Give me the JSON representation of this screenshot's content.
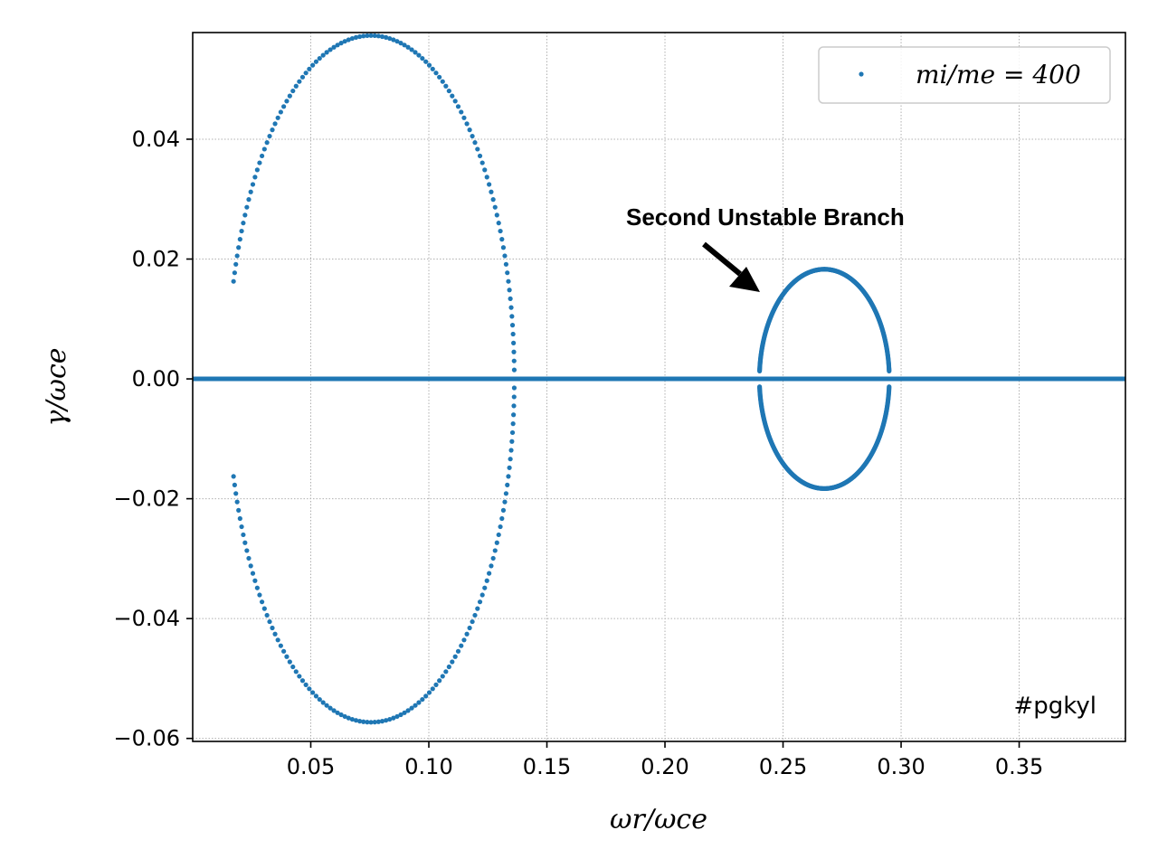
{
  "chart_data": {
    "type": "scatter",
    "title": "",
    "xlabel": "ωr/ωce",
    "ylabel": "γ/ωce",
    "xlim": [
      0.0,
      0.395
    ],
    "ylim": [
      -0.0605,
      0.0578
    ],
    "x_ticks": [
      0.05,
      0.1,
      0.15,
      0.2,
      0.25,
      0.3,
      0.35
    ],
    "x_tick_labels": [
      "0.05",
      "0.10",
      "0.15",
      "0.20",
      "0.25",
      "0.30",
      "0.35"
    ],
    "y_ticks": [
      -0.06,
      -0.04,
      -0.02,
      0.0,
      0.02,
      0.04
    ],
    "y_tick_labels": [
      "−0.06",
      "−0.04",
      "−0.02",
      "0.00",
      "0.02",
      "0.04"
    ],
    "grid": true,
    "legend_position": "top-right",
    "marker_color": "#1f77b4",
    "series": [
      {
        "name": "mi/me = 400",
        "branches": [
          {
            "shape": "closed curve",
            "center_x": 0.0755,
            "center_y": 0.0,
            "half_width": 0.0607,
            "half_height": 0.0573,
            "visible_x_range": [
              0.017,
              0.1365
            ],
            "points": 240
          },
          {
            "shape": "closed curve",
            "center_x": 0.2675,
            "center_y": 0.0,
            "half_width": 0.0275,
            "half_height": 0.0183,
            "visible_x_range": [
              0.24,
              0.295
            ],
            "points": 700
          },
          {
            "shape": "horizontal line",
            "y": 0.0,
            "x_range": [
              0.0,
              0.395
            ]
          }
        ]
      }
    ],
    "annotations": [
      {
        "text": "Second Unstable Branch",
        "arrow_to_x": 0.2435,
        "arrow_to_y": 0.015
      }
    ],
    "watermark": "#pgkyl"
  }
}
